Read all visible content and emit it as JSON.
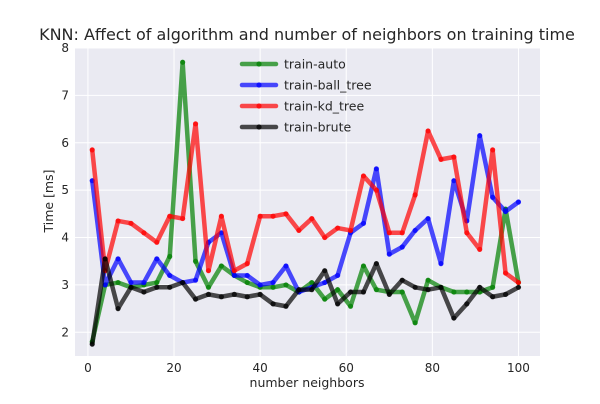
{
  "chart_data": {
    "type": "line",
    "title": "KNN: Affect of algorithm and number of neighbors on training time",
    "xlabel": "number neighbors",
    "ylabel": "Time [ms]",
    "xlim": [
      -3,
      105
    ],
    "ylim": [
      1.5,
      8
    ],
    "xticks": [
      0,
      20,
      40,
      60,
      80,
      100
    ],
    "yticks": [
      2,
      3,
      4,
      5,
      6,
      7,
      8
    ],
    "grid": true,
    "legend_position": "top-center",
    "x": [
      1,
      4,
      7,
      10,
      13,
      16,
      19,
      22,
      25,
      28,
      31,
      34,
      37,
      40,
      43,
      46,
      49,
      52,
      55,
      58,
      61,
      64,
      67,
      70,
      73,
      76,
      79,
      82,
      85,
      88,
      91,
      94,
      97,
      100
    ],
    "series": [
      {
        "name": "train-auto",
        "color": "#008000",
        "values": [
          1.8,
          3.0,
          3.05,
          2.95,
          3.0,
          3.05,
          3.6,
          7.7,
          3.5,
          2.95,
          3.4,
          3.2,
          3.05,
          2.95,
          2.95,
          3.0,
          2.85,
          3.05,
          2.7,
          2.9,
          2.55,
          3.4,
          2.9,
          2.85,
          2.85,
          2.2,
          3.1,
          2.95,
          2.85,
          2.85,
          2.85,
          2.95,
          4.6,
          3.05
        ]
      },
      {
        "name": "train-ball_tree",
        "color": "#0000ff",
        "values": [
          5.2,
          3.0,
          3.55,
          3.05,
          3.05,
          3.55,
          3.2,
          3.05,
          3.1,
          3.9,
          4.1,
          3.2,
          3.2,
          3.0,
          3.05,
          3.4,
          2.85,
          2.95,
          3.05,
          3.2,
          4.1,
          4.3,
          5.45,
          3.65,
          3.8,
          4.15,
          4.4,
          3.45,
          5.2,
          4.35,
          6.15,
          4.85,
          4.55,
          4.75
        ]
      },
      {
        "name": "train-kd_tree",
        "color": "#ff0000",
        "values": [
          5.85,
          3.3,
          4.35,
          4.3,
          4.1,
          3.9,
          4.45,
          4.4,
          6.4,
          3.3,
          4.45,
          3.3,
          3.45,
          4.45,
          4.45,
          4.5,
          4.15,
          4.4,
          4.0,
          4.2,
          4.15,
          5.3,
          5.0,
          4.1,
          4.1,
          4.9,
          6.25,
          5.65,
          5.7,
          4.1,
          3.75,
          5.85,
          3.25,
          3.05
        ]
      },
      {
        "name": "train-brute",
        "color": "#000000",
        "values": [
          1.75,
          3.55,
          2.5,
          2.95,
          2.85,
          2.95,
          2.95,
          3.05,
          2.7,
          2.8,
          2.75,
          2.8,
          2.75,
          2.8,
          2.6,
          2.55,
          2.9,
          2.9,
          3.3,
          2.6,
          2.85,
          2.85,
          3.45,
          2.8,
          3.1,
          2.95,
          2.9,
          2.95,
          2.3,
          2.6,
          2.95,
          2.75,
          2.8,
          2.95
        ]
      }
    ]
  }
}
